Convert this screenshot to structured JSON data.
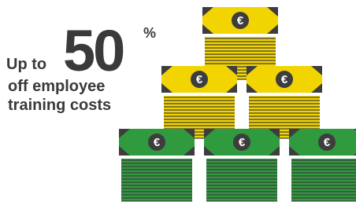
{
  "headline": {
    "prefix": "Up to",
    "number": "50",
    "unit": "%",
    "line2": "off employee",
    "line3": "training costs"
  },
  "bills": [
    {
      "symbol": "€",
      "color": "#f2d400"
    },
    {
      "symbol": "€",
      "color": "#f2d400"
    },
    {
      "symbol": "€",
      "color": "#f2d400"
    },
    {
      "symbol": "€",
      "color": "#2f9a3e"
    },
    {
      "symbol": "€",
      "color": "#2f9a3e"
    },
    {
      "symbol": "€",
      "color": "#2f9a3e"
    }
  ]
}
